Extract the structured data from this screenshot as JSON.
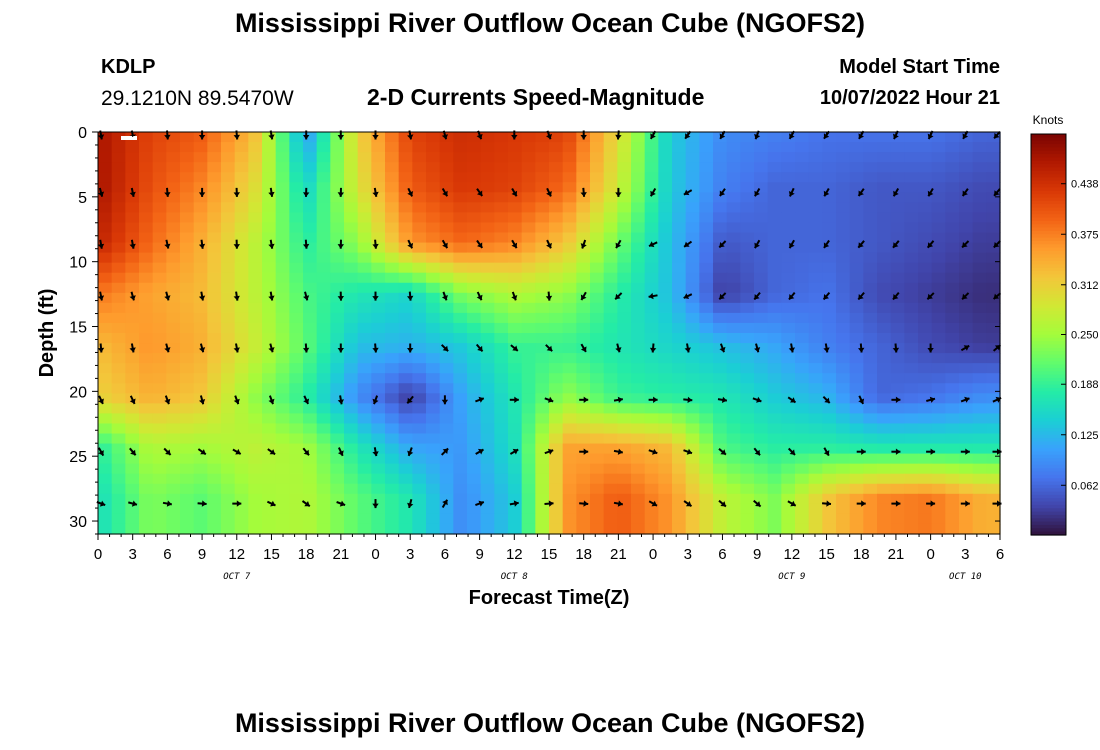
{
  "header": {
    "title": "Mississippi River Outflow Ocean Cube (NGOFS2)",
    "station": "KDLP",
    "coords": "29.1210N  89.5470W",
    "subtitle": "2-D Currents Speed-Magnitude",
    "start_label": "Model Start Time",
    "start_value": "10/07/2022 Hour 21"
  },
  "footer": {
    "title": "Mississippi River Outflow Ocean Cube (NGOFS2)"
  },
  "chart_data": {
    "type": "heatmap",
    "title": "2-D Currents Speed-Magnitude",
    "xlabel": "Forecast Time(Z)",
    "ylabel": "Depth (ft)",
    "x_unit": "hours since 10/07/2022 00Z",
    "xlim": [
      0,
      78
    ],
    "ylim": [
      0,
      31
    ],
    "y_inverted": true,
    "x_ticks": [
      {
        "hour": 0,
        "label": "0"
      },
      {
        "hour": 3,
        "label": "3"
      },
      {
        "hour": 6,
        "label": "6"
      },
      {
        "hour": 9,
        "label": "9"
      },
      {
        "hour": 12,
        "label": "12"
      },
      {
        "hour": 15,
        "label": "15"
      },
      {
        "hour": 18,
        "label": "18"
      },
      {
        "hour": 21,
        "label": "21"
      },
      {
        "hour": 24,
        "label": "0"
      },
      {
        "hour": 27,
        "label": "3"
      },
      {
        "hour": 30,
        "label": "6"
      },
      {
        "hour": 33,
        "label": "9"
      },
      {
        "hour": 36,
        "label": "12"
      },
      {
        "hour": 39,
        "label": "15"
      },
      {
        "hour": 42,
        "label": "18"
      },
      {
        "hour": 45,
        "label": "21"
      },
      {
        "hour": 48,
        "label": "0"
      },
      {
        "hour": 51,
        "label": "3"
      },
      {
        "hour": 54,
        "label": "6"
      },
      {
        "hour": 57,
        "label": "9"
      },
      {
        "hour": 60,
        "label": "12"
      },
      {
        "hour": 63,
        "label": "15"
      },
      {
        "hour": 66,
        "label": "18"
      },
      {
        "hour": 69,
        "label": "21"
      },
      {
        "hour": 72,
        "label": "0"
      },
      {
        "hour": 75,
        "label": "3"
      },
      {
        "hour": 78,
        "label": "6"
      }
    ],
    "day_labels": [
      {
        "hour": 12,
        "label": "OCT 7"
      },
      {
        "hour": 36,
        "label": "OCT 8"
      },
      {
        "hour": 60,
        "label": "OCT 9"
      },
      {
        "hour": 75,
        "label": "OCT 10"
      }
    ],
    "y_ticks": [
      0,
      5,
      10,
      15,
      20,
      25,
      30
    ],
    "depths": [
      0,
      4.3,
      8.6,
      12.5,
      16.5,
      20.4,
      24.3,
      28.2
    ],
    "times": [
      0,
      4.5,
      9,
      13.5,
      18,
      22.5,
      27,
      31.5,
      36,
      40.5,
      45,
      49.5,
      54,
      58.5,
      63,
      67.5,
      72,
      76.5
    ],
    "speed": [
      [
        0.47,
        0.42,
        0.4,
        0.33,
        0.1,
        0.31,
        0.42,
        0.44,
        0.43,
        0.42,
        0.3,
        0.14,
        0.09,
        0.08,
        0.07,
        0.07,
        0.07,
        0.06
      ],
      [
        0.47,
        0.41,
        0.37,
        0.3,
        0.15,
        0.29,
        0.4,
        0.43,
        0.42,
        0.39,
        0.28,
        0.14,
        0.08,
        0.06,
        0.06,
        0.05,
        0.05,
        0.04
      ],
      [
        0.45,
        0.39,
        0.34,
        0.27,
        0.18,
        0.24,
        0.36,
        0.39,
        0.37,
        0.32,
        0.22,
        0.13,
        0.05,
        0.06,
        0.06,
        0.05,
        0.04,
        0.03
      ],
      [
        0.38,
        0.35,
        0.33,
        0.27,
        0.2,
        0.17,
        0.15,
        0.23,
        0.26,
        0.24,
        0.18,
        0.13,
        0.03,
        0.06,
        0.07,
        0.04,
        0.03,
        0.02
      ],
      [
        0.33,
        0.36,
        0.34,
        0.28,
        0.21,
        0.13,
        0.12,
        0.14,
        0.19,
        0.19,
        0.17,
        0.15,
        0.13,
        0.11,
        0.08,
        0.06,
        0.04,
        0.03
      ],
      [
        0.31,
        0.34,
        0.32,
        0.24,
        0.18,
        0.09,
        0.03,
        0.11,
        0.17,
        0.24,
        0.19,
        0.18,
        0.17,
        0.14,
        0.12,
        0.06,
        0.07,
        0.09
      ],
      [
        0.18,
        0.26,
        0.25,
        0.27,
        0.25,
        0.17,
        0.11,
        0.1,
        0.16,
        0.35,
        0.35,
        0.33,
        0.2,
        0.18,
        0.18,
        0.17,
        0.17,
        0.17
      ],
      [
        0.16,
        0.23,
        0.21,
        0.25,
        0.26,
        0.21,
        0.17,
        0.09,
        0.14,
        0.36,
        0.4,
        0.36,
        0.27,
        0.23,
        0.32,
        0.37,
        0.38,
        0.34
      ]
    ],
    "arrow_times": [
      0,
      3,
      6,
      9,
      12,
      15,
      18,
      21,
      24,
      27,
      30,
      33,
      36,
      39,
      42,
      45,
      48,
      51,
      54,
      57,
      60,
      63,
      66,
      69,
      72,
      75,
      78
    ],
    "arrow_depths": [
      0,
      4.5,
      8.5,
      12.5,
      16.5,
      20.5,
      24.5,
      28.5
    ],
    "arrow_dirs_deg": [
      [
        170,
        168,
        175,
        180,
        175,
        170,
        180,
        180,
        180,
        170,
        165,
        160,
        180,
        160,
        180,
        185,
        210,
        215,
        210,
        200,
        210,
        215,
        210,
        205,
        205,
        210,
        220
      ],
      [
        165,
        168,
        175,
        180,
        178,
        172,
        182,
        182,
        170,
        155,
        150,
        145,
        150,
        155,
        175,
        180,
        210,
        240,
        215,
        210,
        205,
        210,
        215,
        210,
        210,
        215,
        220
      ],
      [
        170,
        170,
        168,
        172,
        178,
        170,
        175,
        182,
        175,
        155,
        150,
        145,
        150,
        155,
        200,
        210,
        245,
        235,
        225,
        210,
        210,
        215,
        220,
        220,
        220,
        225,
        225
      ],
      [
        168,
        165,
        165,
        170,
        172,
        170,
        165,
        178,
        180,
        175,
        160,
        155,
        160,
        175,
        210,
        225,
        260,
        245,
        225,
        220,
        220,
        220,
        220,
        220,
        225,
        225,
        230
      ],
      [
        175,
        170,
        165,
        165,
        170,
        165,
        175,
        180,
        175,
        180,
        135,
        140,
        130,
        135,
        150,
        165,
        185,
        170,
        160,
        165,
        170,
        170,
        175,
        175,
        180,
        60,
        50
      ],
      [
        155,
        155,
        160,
        165,
        160,
        160,
        155,
        170,
        200,
        220,
        180,
        70,
        90,
        110,
        90,
        80,
        90,
        95,
        100,
        110,
        125,
        135,
        155,
        90,
        75,
        70,
        65
      ],
      [
        150,
        140,
        135,
        125,
        120,
        125,
        140,
        155,
        170,
        200,
        45,
        60,
        60,
        70,
        90,
        100,
        110,
        110,
        130,
        140,
        135,
        150,
        90,
        90,
        90,
        90,
        90
      ],
      [
        110,
        105,
        100,
        95,
        90,
        115,
        125,
        110,
        180,
        195,
        30,
        70,
        80,
        85,
        95,
        100,
        120,
        125,
        130,
        130,
        120,
        95,
        90,
        90,
        90,
        90,
        90
      ]
    ],
    "colorbar": {
      "label": "Knots",
      "min": 0,
      "max": 0.5,
      "ticks": [
        "0.062",
        "0.125",
        "0.188",
        "0.250",
        "0.312",
        "0.375",
        "0.438"
      ],
      "tick_values": [
        0.062,
        0.125,
        0.188,
        0.25,
        0.312,
        0.375,
        0.438
      ]
    }
  },
  "colors": {
    "scale": [
      "#30123b",
      "#4145ab",
      "#4675ed",
      "#39a2fc",
      "#1bcfd4",
      "#24eca6",
      "#61fc6c",
      "#a4fc3b",
      "#d1e834",
      "#f3c63a",
      "#fe9b2d",
      "#f36315",
      "#d93806",
      "#b11901",
      "#7a0402"
    ]
  }
}
